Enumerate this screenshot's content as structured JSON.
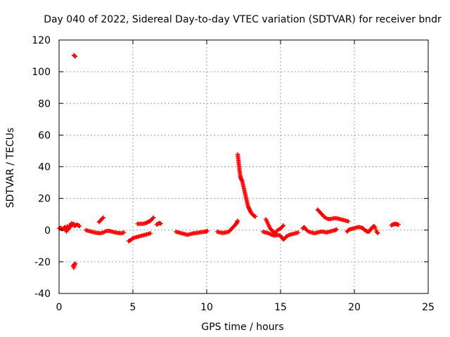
{
  "chart_data": {
    "type": "scatter",
    "title": "Day 040 of 2022, Sidereal Day-to-day VTEC variation (SDTVAR) for receiver bndr",
    "xlabel": "GPS time / hours",
    "ylabel": "SDTVAR / TECUs",
    "xlim": [
      0,
      25
    ],
    "ylim": [
      -40,
      120
    ],
    "xticks": [
      0,
      5,
      10,
      15,
      20,
      25
    ],
    "yticks": [
      -40,
      -20,
      0,
      20,
      40,
      60,
      80,
      100,
      120
    ],
    "grid": true,
    "marker": "+",
    "color": "#ff0000",
    "series": [
      {
        "name": "SDTVAR",
        "segments": [
          [
            [
              0.0,
              1.0
            ],
            [
              0.1,
              1.5
            ],
            [
              0.2,
              0.5
            ],
            [
              0.3,
              1.0
            ],
            [
              0.4,
              2.0
            ],
            [
              0.45,
              0.5
            ],
            [
              0.5,
              -1.0
            ],
            [
              0.55,
              2.5
            ],
            [
              0.6,
              0.0
            ],
            [
              0.65,
              1.5
            ],
            [
              0.7,
              3.0
            ],
            [
              0.8,
              2.0
            ],
            [
              0.85,
              4.5
            ],
            [
              0.9,
              3.5
            ],
            [
              1.0,
              4.0
            ],
            [
              1.05,
              2.5
            ],
            [
              1.1,
              3.0
            ],
            [
              1.2,
              3.5
            ],
            [
              1.3,
              3.0
            ],
            [
              1.4,
              2.5
            ]
          ],
          [
            [
              0.95,
              -23.0
            ],
            [
              1.0,
              -22.0
            ],
            [
              1.05,
              -21.5
            ],
            [
              1.1,
              -21.0
            ],
            [
              1.0,
              -24.0
            ]
          ],
          [
            [
              1.0,
              110.5
            ],
            [
              1.05,
              110.0
            ],
            [
              1.1,
              109.5
            ]
          ],
          [
            [
              1.8,
              0.0
            ],
            [
              2.0,
              -0.5
            ],
            [
              2.2,
              -1.0
            ],
            [
              2.4,
              -1.5
            ],
            [
              2.6,
              -1.8
            ],
            [
              2.8,
              -2.0
            ],
            [
              3.0,
              -1.5
            ],
            [
              3.2,
              -0.5
            ],
            [
              3.4,
              -0.5
            ],
            [
              3.6,
              -1.0
            ],
            [
              3.8,
              -1.5
            ],
            [
              4.0,
              -1.8
            ],
            [
              4.2,
              -2.0
            ],
            [
              4.4,
              -1.5
            ]
          ],
          [
            [
              2.7,
              5.0
            ],
            [
              2.8,
              6.0
            ],
            [
              2.9,
              7.0
            ],
            [
              3.0,
              8.0
            ]
          ],
          [
            [
              4.7,
              -7.0
            ],
            [
              4.8,
              -6.5
            ],
            [
              4.9,
              -6.0
            ],
            [
              5.0,
              -5.0
            ],
            [
              5.2,
              -4.5
            ],
            [
              5.4,
              -4.0
            ],
            [
              5.6,
              -3.5
            ],
            [
              5.8,
              -3.0
            ],
            [
              6.0,
              -2.5
            ],
            [
              6.2,
              -2.0
            ]
          ],
          [
            [
              5.3,
              4.0
            ],
            [
              5.5,
              4.0
            ],
            [
              5.7,
              4.0
            ],
            [
              5.9,
              4.5
            ],
            [
              6.0,
              5.0
            ],
            [
              6.1,
              5.5
            ],
            [
              6.2,
              6.0
            ],
            [
              6.3,
              7.0
            ],
            [
              6.4,
              8.0
            ]
          ],
          [
            [
              6.6,
              3.5
            ],
            [
              6.7,
              4.0
            ],
            [
              6.8,
              4.5
            ],
            [
              6.9,
              4.0
            ]
          ],
          [
            [
              7.9,
              -1.0
            ],
            [
              8.1,
              -1.5
            ],
            [
              8.3,
              -2.0
            ],
            [
              8.5,
              -2.5
            ],
            [
              8.7,
              -3.0
            ],
            [
              8.9,
              -2.5
            ],
            [
              9.1,
              -2.0
            ],
            [
              9.3,
              -1.8
            ],
            [
              9.5,
              -1.5
            ],
            [
              9.7,
              -1.2
            ],
            [
              9.9,
              -1.0
            ],
            [
              10.05,
              -0.5
            ]
          ],
          [
            [
              10.7,
              -1.0
            ],
            [
              10.9,
              -1.5
            ],
            [
              11.1,
              -1.8
            ],
            [
              11.3,
              -1.5
            ],
            [
              11.5,
              -1.0
            ],
            [
              11.6,
              0.0
            ],
            [
              11.7,
              1.0
            ],
            [
              11.8,
              2.0
            ],
            [
              11.9,
              3.0
            ],
            [
              12.0,
              4.0
            ],
            [
              12.05,
              5.0
            ],
            [
              12.1,
              6.0
            ]
          ],
          [
            [
              12.1,
              48.0
            ],
            [
              12.12,
              46.0
            ],
            [
              12.15,
              44.0
            ],
            [
              12.17,
              42.0
            ],
            [
              12.2,
              40.0
            ],
            [
              12.22,
              38.0
            ],
            [
              12.25,
              36.0
            ],
            [
              12.28,
              34.0
            ],
            [
              12.3,
              33.0
            ],
            [
              12.35,
              32.0
            ],
            [
              12.4,
              31.0
            ],
            [
              12.45,
              29.0
            ],
            [
              12.5,
              27.0
            ],
            [
              12.55,
              25.0
            ],
            [
              12.6,
              23.0
            ],
            [
              12.65,
              21.0
            ],
            [
              12.7,
              19.0
            ],
            [
              12.75,
              17.0
            ],
            [
              12.8,
              15.0
            ],
            [
              12.85,
              14.0
            ],
            [
              12.9,
              13.0
            ],
            [
              12.95,
              12.0
            ],
            [
              13.0,
              11.0
            ],
            [
              13.1,
              10.0
            ],
            [
              13.2,
              9.0
            ],
            [
              13.3,
              8.5
            ]
          ],
          [
            [
              13.8,
              -1.0
            ],
            [
              14.0,
              -1.5
            ],
            [
              14.2,
              -2.0
            ],
            [
              14.4,
              -3.0
            ],
            [
              14.6,
              -3.5
            ],
            [
              14.8,
              -3.0
            ],
            [
              15.0,
              -3.5
            ],
            [
              15.1,
              -5.0
            ],
            [
              15.2,
              -6.0
            ],
            [
              15.3,
              -5.0
            ],
            [
              15.4,
              -4.0
            ],
            [
              15.6,
              -3.0
            ],
            [
              15.8,
              -2.5
            ],
            [
              16.0,
              -2.0
            ],
            [
              16.2,
              -1.5
            ]
          ],
          [
            [
              14.0,
              7.0
            ],
            [
              14.1,
              5.0
            ],
            [
              14.2,
              3.0
            ],
            [
              14.3,
              1.0
            ],
            [
              14.4,
              0.0
            ],
            [
              14.5,
              -1.0
            ],
            [
              14.6,
              -2.0
            ],
            [
              14.8,
              0.0
            ],
            [
              15.0,
              1.0
            ],
            [
              15.1,
              2.0
            ],
            [
              15.2,
              3.0
            ]
          ],
          [
            [
              16.5,
              1.0
            ],
            [
              16.6,
              2.0
            ],
            [
              16.7,
              0.5
            ],
            [
              16.9,
              -1.0
            ],
            [
              17.1,
              -1.5
            ],
            [
              17.3,
              -2.0
            ],
            [
              17.5,
              -1.5
            ],
            [
              17.7,
              -1.0
            ],
            [
              17.9,
              -1.0
            ],
            [
              18.1,
              -1.5
            ],
            [
              18.3,
              -1.0
            ],
            [
              18.5,
              -0.5
            ],
            [
              18.7,
              0.0
            ],
            [
              18.8,
              0.5
            ]
          ],
          [
            [
              17.5,
              13.0
            ],
            [
              17.6,
              12.0
            ],
            [
              17.7,
              11.0
            ],
            [
              17.8,
              10.0
            ],
            [
              17.9,
              9.0
            ],
            [
              18.0,
              8.0
            ],
            [
              18.2,
              7.0
            ],
            [
              18.4,
              7.0
            ],
            [
              18.6,
              7.5
            ],
            [
              18.8,
              7.5
            ],
            [
              19.0,
              7.0
            ],
            [
              19.2,
              6.5
            ],
            [
              19.4,
              6.0
            ],
            [
              19.6,
              5.5
            ]
          ],
          [
            [
              19.5,
              -1.0
            ],
            [
              19.6,
              0.0
            ],
            [
              19.7,
              0.5
            ],
            [
              19.9,
              1.0
            ],
            [
              20.1,
              1.5
            ],
            [
              20.3,
              2.0
            ],
            [
              20.5,
              1.5
            ],
            [
              20.6,
              1.0
            ],
            [
              20.7,
              0.0
            ],
            [
              20.8,
              -0.5
            ],
            [
              20.9,
              -1.0
            ],
            [
              21.0,
              -1.0
            ],
            [
              21.1,
              0.5
            ],
            [
              21.2,
              1.5
            ],
            [
              21.3,
              2.5
            ],
            [
              21.4,
              2.0
            ],
            [
              21.5,
              -1.0
            ],
            [
              21.6,
              -2.0
            ]
          ],
          [
            [
              22.5,
              3.0
            ],
            [
              22.6,
              3.5
            ],
            [
              22.7,
              3.8
            ],
            [
              22.8,
              4.0
            ],
            [
              22.9,
              3.5
            ],
            [
              23.0,
              3.5
            ]
          ]
        ]
      }
    ]
  }
}
